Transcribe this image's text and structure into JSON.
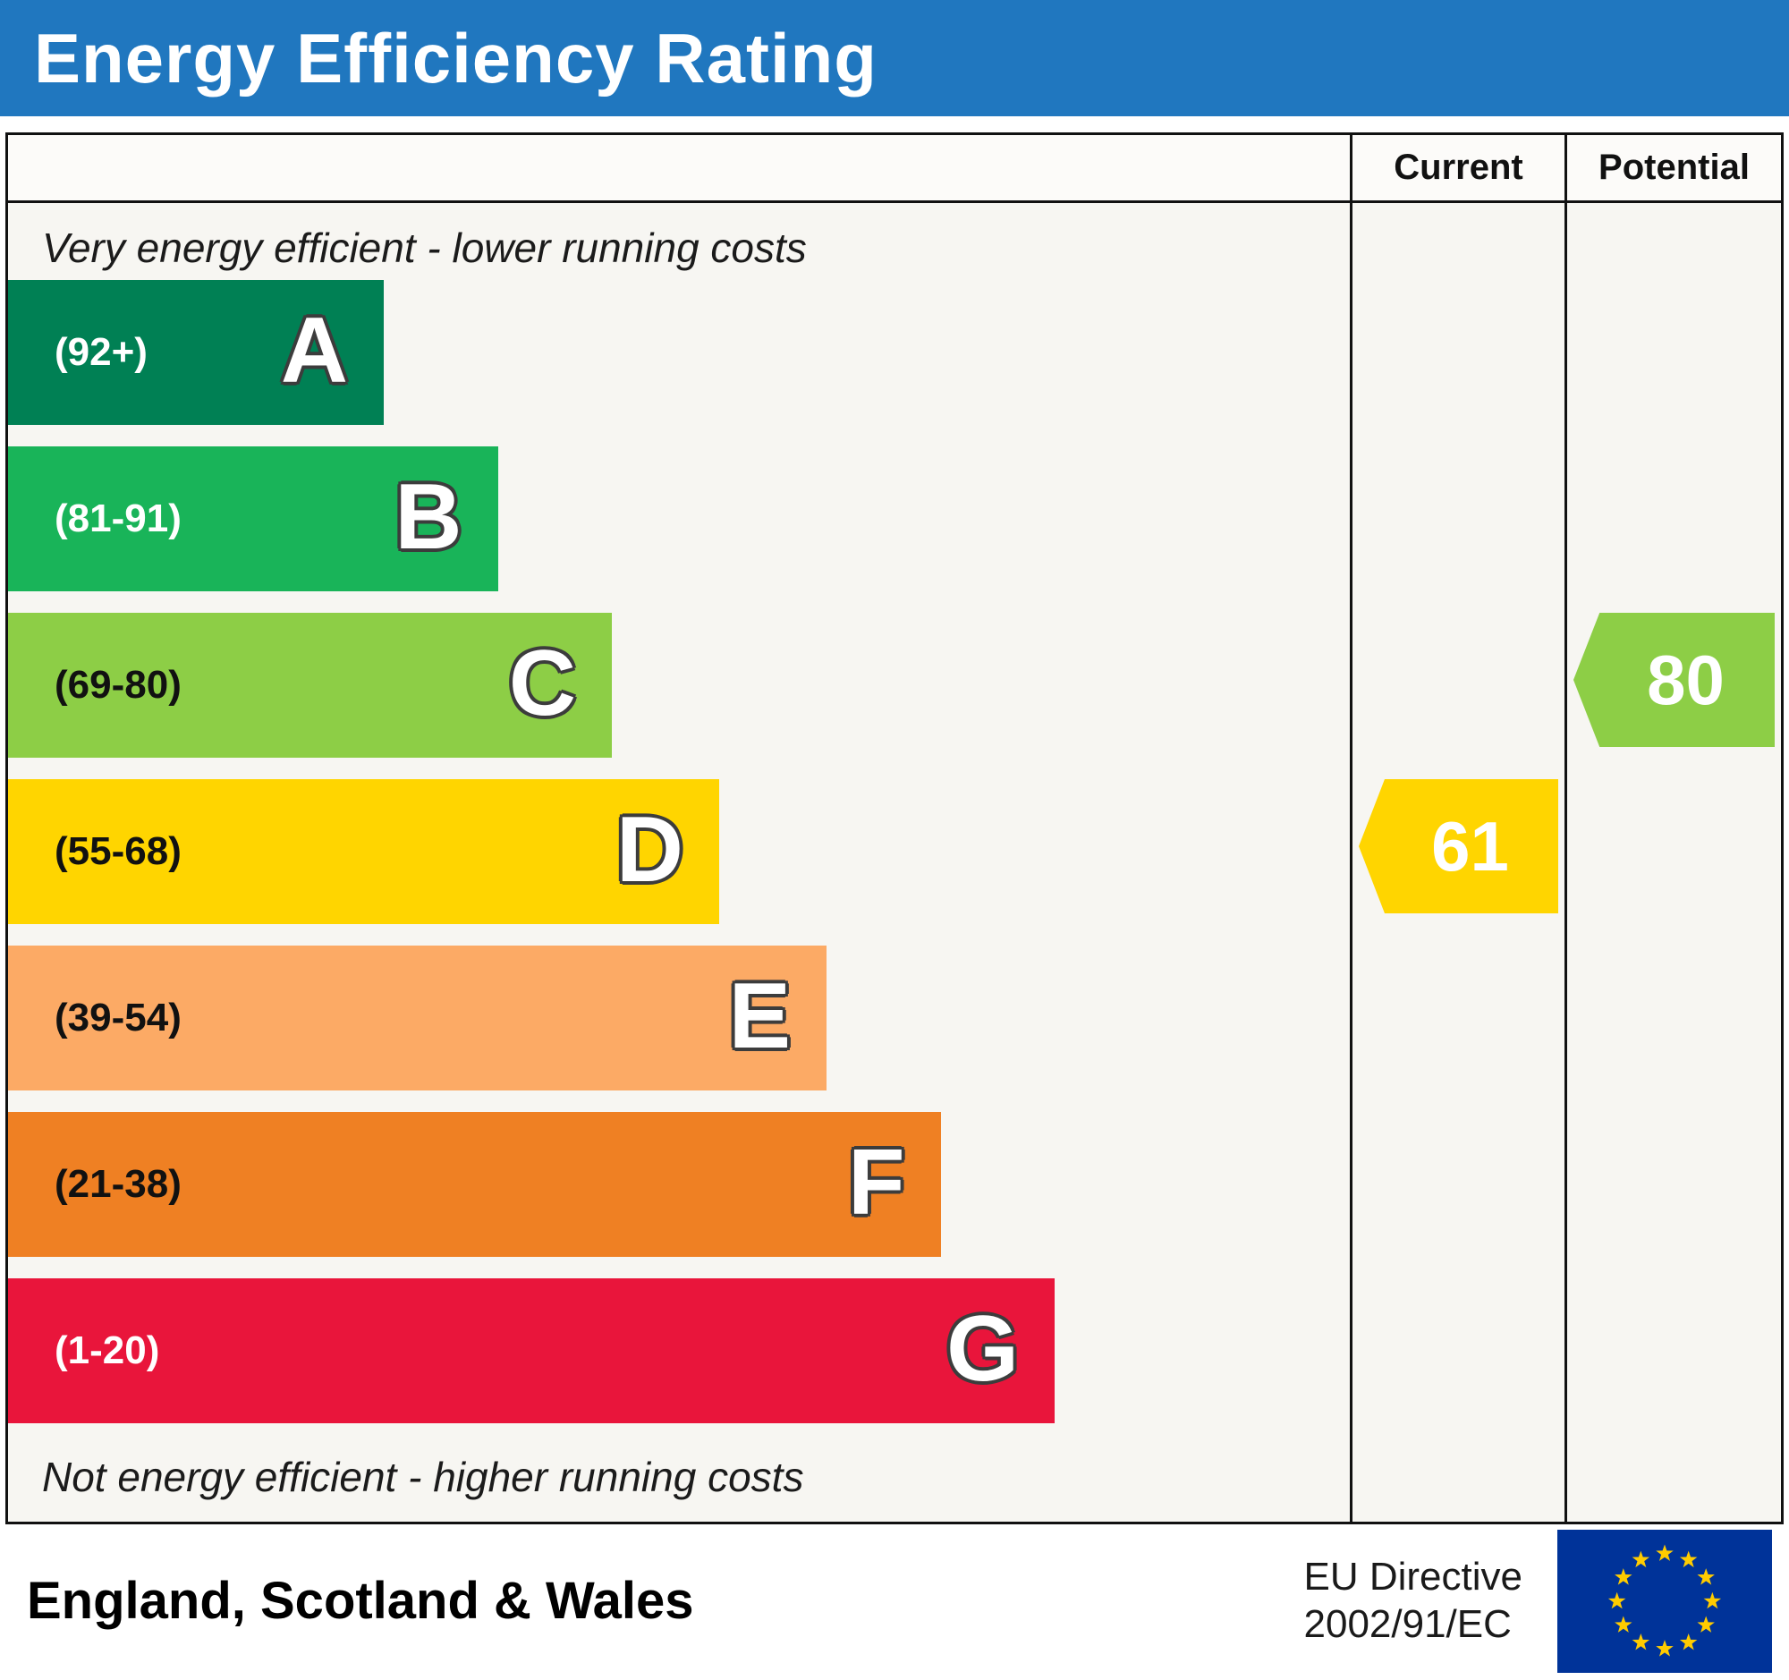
{
  "header": {
    "title": "Energy Efficiency Rating"
  },
  "columns": {
    "current": "Current",
    "potential": "Potential"
  },
  "chart_data": {
    "type": "bar",
    "title": "Energy Efficiency Rating",
    "top_note": "Very energy efficient - lower running costs",
    "bottom_note": "Not energy efficient - higher running costs",
    "bands": [
      {
        "letter": "A",
        "range": "(92+)",
        "min": 92,
        "max": 100,
        "color": "#008054",
        "label_color": "#ffffff",
        "width_pct": 28
      },
      {
        "letter": "B",
        "range": "(81-91)",
        "min": 81,
        "max": 91,
        "color": "#19b459",
        "label_color": "#ffffff",
        "width_pct": 36.5
      },
      {
        "letter": "C",
        "range": "(69-80)",
        "min": 69,
        "max": 80,
        "color": "#8dce46",
        "label_color": "#111111",
        "width_pct": 45
      },
      {
        "letter": "D",
        "range": "(55-68)",
        "min": 55,
        "max": 68,
        "color": "#ffd500",
        "label_color": "#111111",
        "width_pct": 53
      },
      {
        "letter": "E",
        "range": "(39-54)",
        "min": 39,
        "max": 54,
        "color": "#fcaa65",
        "label_color": "#111111",
        "width_pct": 61
      },
      {
        "letter": "F",
        "range": "(21-38)",
        "min": 21,
        "max": 38,
        "color": "#ef8023",
        "label_color": "#111111",
        "width_pct": 69.5
      },
      {
        "letter": "G",
        "range": "(1-20)",
        "min": 1,
        "max": 20,
        "color": "#e9153b",
        "label_color": "#ffffff",
        "width_pct": 78
      }
    ],
    "current": {
      "value": 61,
      "band": "D",
      "color": "#ffd500"
    },
    "potential": {
      "value": 80,
      "band": "C",
      "color": "#8dce46"
    }
  },
  "footer": {
    "region": "England, Scotland & Wales",
    "directive_line1": "EU Directive",
    "directive_line2": "2002/91/EC"
  },
  "colors": {
    "banner_blue": "#2077bf",
    "banner_text": "#ffffff",
    "eu_flag_blue": "#003399",
    "eu_flag_stars": "#ffcc00"
  }
}
